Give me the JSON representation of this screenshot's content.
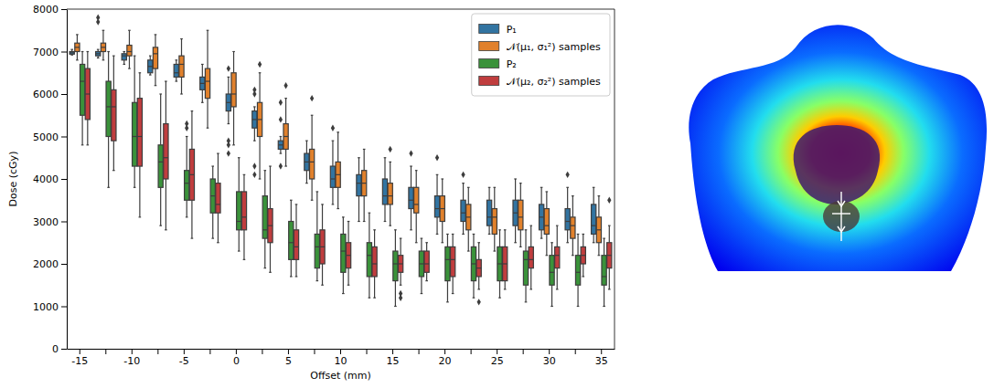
{
  "chart_data": {
    "type": "box",
    "x_label": "Offset (mm)",
    "y_label": "Dose (cGy)",
    "categories": [
      "-15",
      null,
      "-10",
      null,
      "-5",
      null,
      "0",
      null,
      "5",
      null,
      "10",
      null,
      "15",
      null,
      "20",
      null,
      "25",
      null,
      "30",
      null,
      "35"
    ],
    "ylim": [
      0,
      8000
    ],
    "yticks": [
      0,
      1000,
      2000,
      3000,
      4000,
      5000,
      6000,
      7000,
      8000
    ],
    "legend": "upper right",
    "series": [
      {
        "name": "P₁",
        "color": "#3274a1",
        "low": [
          6920,
          6850,
          6700,
          6450,
          6300,
          5800,
          5300,
          4900,
          4600,
          3900,
          3400,
          3000,
          3000,
          2800,
          2700,
          2700,
          2700,
          2500,
          2600,
          2500,
          2500
        ],
        "q1": [
          6940,
          6900,
          6800,
          6500,
          6400,
          6100,
          5600,
          5200,
          4700,
          4200,
          3800,
          3600,
          3400,
          3300,
          3100,
          3000,
          2900,
          2900,
          2800,
          2800,
          2700
        ],
        "median": [
          6970,
          6950,
          6900,
          6650,
          6500,
          6250,
          5800,
          5400,
          4800,
          4400,
          4000,
          3900,
          3600,
          3500,
          3300,
          3200,
          3100,
          3200,
          3100,
          3000,
          2900
        ],
        "q3": [
          7000,
          7000,
          6950,
          6800,
          6700,
          6400,
          6000,
          5600,
          4900,
          4600,
          4300,
          4100,
          4000,
          3800,
          3600,
          3500,
          3500,
          3500,
          3400,
          3300,
          3400
        ],
        "high": [
          7050,
          7050,
          7000,
          6900,
          6800,
          6700,
          6400,
          5700,
          5000,
          4900,
          4900,
          4500,
          4500,
          4300,
          4100,
          3900,
          3800,
          4000,
          3800,
          3800,
          3800
        ],
        "outliers": [
          [],
          [
            7800,
            7700
          ],
          [],
          [],
          [],
          [],
          [
            4600,
            4800,
            4900,
            6600
          ],
          [
            4100,
            4300,
            6000,
            6100
          ],
          [
            4300,
            5400,
            5800
          ],
          [],
          [
            5200
          ],
          [],
          [],
          [
            4600
          ],
          [
            4500
          ],
          [
            4100
          ],
          [],
          [],
          [],
          [
            4100
          ],
          []
        ]
      },
      {
        "name": "𝒩(μ₁, σ₁²) samples",
        "color": "#e1812c",
        "low": [
          6800,
          6800,
          6600,
          6200,
          6000,
          5200,
          4800,
          4000,
          4300,
          3500,
          3300,
          3000,
          2900,
          2500,
          2500,
          2300,
          2300,
          2400,
          2200,
          2200,
          2200
        ],
        "q1": [
          7000,
          7000,
          6900,
          6600,
          6400,
          5900,
          5700,
          5000,
          4700,
          4000,
          3800,
          3600,
          3400,
          3200,
          3000,
          2800,
          2700,
          2800,
          2700,
          2600,
          2500
        ],
        "median": [
          7100,
          7100,
          7000,
          6950,
          6700,
          6300,
          6000,
          5400,
          5000,
          4400,
          4100,
          3900,
          3600,
          3400,
          3300,
          3100,
          3100,
          3100,
          2900,
          2900,
          2800
        ],
        "q3": [
          7200,
          7200,
          7150,
          7100,
          6900,
          6600,
          6500,
          5800,
          5300,
          4700,
          4400,
          4200,
          3900,
          3800,
          3600,
          3400,
          3300,
          3500,
          3300,
          3100,
          3100
        ],
        "high": [
          7400,
          7500,
          7500,
          7400,
          7300,
          7500,
          7000,
          6500,
          5900,
          5500,
          5100,
          4700,
          4400,
          4200,
          4000,
          3800,
          3800,
          3900,
          3700,
          3600,
          3600
        ],
        "outliers": [
          [],
          [],
          [],
          [],
          [],
          [],
          [],
          [
            6700
          ],
          [
            6200
          ],
          [
            5900
          ],
          [],
          [],
          [
            4700
          ],
          [],
          [],
          [],
          [],
          [],
          [],
          [],
          []
        ]
      },
      {
        "name": "P₂",
        "color": "#3a923a",
        "low": [
          4800,
          3800,
          3800,
          2900,
          3100,
          2600,
          2300,
          1900,
          1700,
          1600,
          1300,
          1200,
          1000,
          1300,
          1100,
          1200,
          1200,
          1100,
          1000,
          1000,
          1000
        ],
        "q1": [
          5500,
          5000,
          4300,
          3800,
          3500,
          3200,
          2800,
          2600,
          2100,
          1900,
          1800,
          1700,
          1600,
          1700,
          1600,
          1600,
          1600,
          1500,
          1500,
          1500,
          1500
        ],
        "median": [
          6300,
          5700,
          5000,
          4400,
          3900,
          3600,
          3000,
          2800,
          2500,
          2400,
          2300,
          2200,
          2000,
          2000,
          2100,
          2000,
          2000,
          2100,
          1800,
          1800,
          1700
        ],
        "q3": [
          6700,
          6300,
          5800,
          4800,
          4200,
          4000,
          3700,
          3600,
          3000,
          2700,
          2700,
          2500,
          2300,
          2300,
          2400,
          2400,
          2400,
          2300,
          2200,
          2200,
          2200
        ],
        "high": [
          7000,
          7000,
          6900,
          6000,
          5000,
          4300,
          4500,
          4200,
          3500,
          3700,
          3100,
          3200,
          2800,
          2600,
          2700,
          2700,
          2800,
          2800,
          2500,
          2700,
          2600
        ],
        "outliers": [
          [],
          [],
          [],
          [],
          [
            5200,
            5300
          ],
          [],
          [],
          [],
          [],
          [],
          [],
          [],
          [],
          [],
          [],
          [],
          [],
          [],
          [],
          [],
          []
        ]
      },
      {
        "name": "𝒩(μ₂, σ₂²) samples",
        "color": "#c03d3e",
        "low": [
          4800,
          4200,
          3100,
          2800,
          2600,
          2500,
          2100,
          1800,
          1700,
          1500,
          1500,
          1200,
          1500,
          1600,
          1300,
          1400,
          1400,
          1400,
          1400,
          1700,
          1400
        ],
        "q1": [
          5400,
          4900,
          4300,
          4000,
          3500,
          3200,
          2800,
          2500,
          2100,
          2000,
          1900,
          1700,
          1800,
          1800,
          1700,
          1700,
          1600,
          1900,
          1900,
          2000,
          1900
        ],
        "median": [
          6000,
          5700,
          5000,
          4500,
          4100,
          3400,
          3100,
          2900,
          2400,
          2400,
          2200,
          2000,
          2000,
          2000,
          2100,
          1900,
          2000,
          2100,
          2200,
          2200,
          2200
        ],
        "q3": [
          6600,
          6100,
          5900,
          5300,
          4700,
          3900,
          3700,
          3300,
          2800,
          2800,
          2500,
          2400,
          2200,
          2300,
          2400,
          2100,
          2400,
          2400,
          2400,
          2400,
          2500
        ],
        "high": [
          7000,
          6900,
          6500,
          6300,
          5600,
          4600,
          4100,
          4300,
          3400,
          3400,
          3000,
          2800,
          2600,
          2500,
          2700,
          2500,
          2800,
          2900,
          2900,
          2700,
          2900
        ],
        "outliers": [
          [],
          [],
          [],
          [],
          [],
          [],
          [],
          [],
          [],
          [],
          [],
          [],
          [
            1300,
            1200
          ],
          [],
          [],
          [
            1100
          ],
          [],
          [],
          [],
          [],
          [
            3500
          ]
        ]
      }
    ]
  }
}
